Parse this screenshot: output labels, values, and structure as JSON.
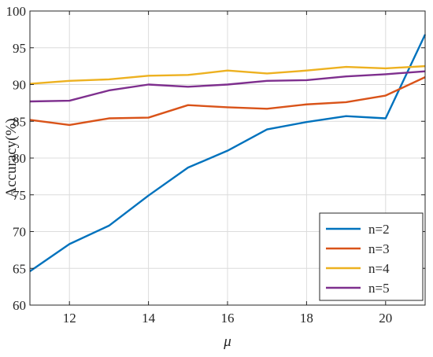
{
  "chart_data": {
    "type": "line",
    "xlabel": "μ",
    "ylabel": "Accuracy(%)",
    "xlim": [
      11,
      21
    ],
    "ylim": [
      60,
      100
    ],
    "xticks": [
      12,
      14,
      16,
      18,
      20
    ],
    "yticks": [
      60,
      65,
      70,
      75,
      80,
      85,
      90,
      95,
      100
    ],
    "grid": true,
    "legend_position": "bottom-right",
    "x": [
      11,
      12,
      13,
      14,
      15,
      16,
      17,
      18,
      19,
      20,
      21
    ],
    "series": [
      {
        "name": "n=2",
        "color": "#0072BD",
        "values": [
          64.6,
          68.3,
          70.8,
          74.9,
          78.7,
          81.0,
          83.9,
          84.9,
          85.7,
          85.4,
          96.8
        ]
      },
      {
        "name": "n=3",
        "color": "#D95319",
        "values": [
          85.2,
          84.5,
          85.4,
          85.5,
          87.2,
          86.9,
          86.7,
          87.3,
          87.6,
          88.5,
          91.0
        ]
      },
      {
        "name": "n=4",
        "color": "#EDB120",
        "values": [
          90.1,
          90.5,
          90.7,
          91.2,
          91.3,
          91.9,
          91.5,
          91.9,
          92.4,
          92.2,
          92.5
        ]
      },
      {
        "name": "n=5",
        "color": "#7E2F8E",
        "values": [
          87.7,
          87.8,
          89.2,
          90.0,
          89.7,
          90.0,
          90.5,
          90.6,
          91.1,
          91.4,
          91.8
        ]
      }
    ]
  }
}
